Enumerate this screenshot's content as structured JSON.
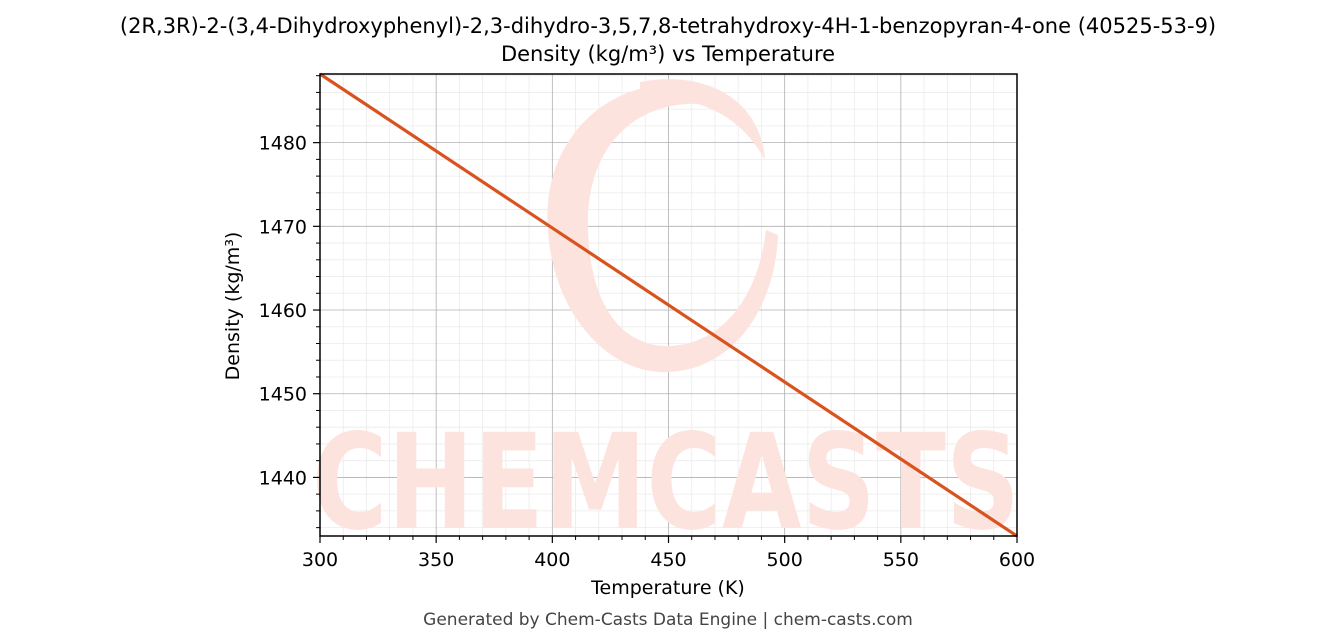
{
  "chart_data": {
    "type": "line",
    "title_line1": "(2R,3R)-2-(3,4-Dihydroxyphenyl)-2,3-dihydro-3,5,7,8-tetrahydroxy-4H-1-benzopyran-4-one (40525-53-9)",
    "title_line2": "Density (kg/m³) vs Temperature",
    "xlabel": "Temperature (K)",
    "ylabel": "Density (kg/m³)",
    "xlim": [
      300,
      600
    ],
    "ylim": [
      1433,
      1488.2
    ],
    "xticks": [
      300,
      350,
      400,
      450,
      500,
      550,
      600
    ],
    "yticks": [
      1440,
      1450,
      1460,
      1470,
      1480
    ],
    "grid": true,
    "series": [
      {
        "color": "#d9531e",
        "x": [
          300,
          600
        ],
        "y": [
          1488.2,
          1433
        ]
      }
    ]
  },
  "watermark": {
    "text": "CHEMCASTS",
    "color": "#fde3de"
  },
  "footer": "Generated by Chem-Casts Data Engine | chem-casts.com"
}
